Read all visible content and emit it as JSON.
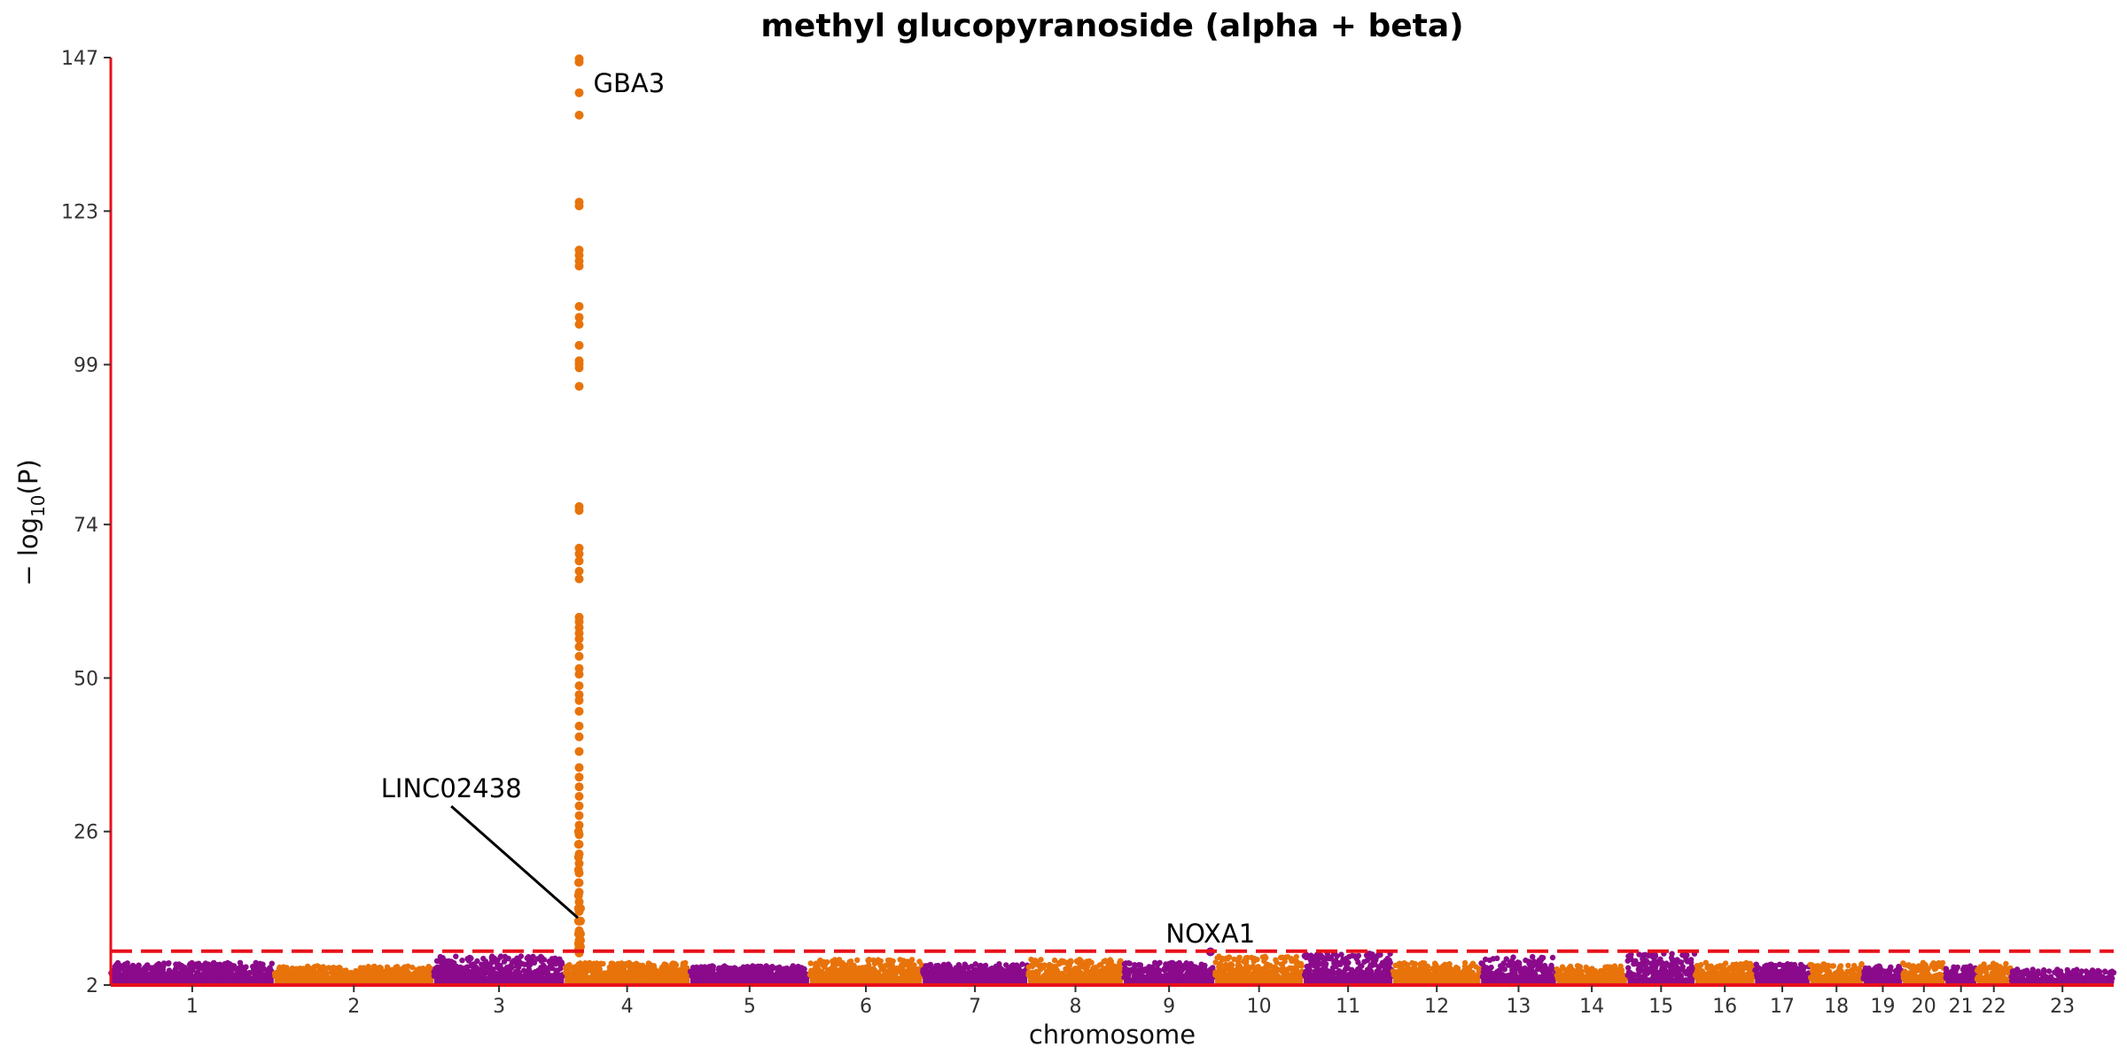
{
  "chart_data": {
    "type": "scatter",
    "title": "methyl glucopyranoside (alpha + beta)",
    "xlabel": "chromosome",
    "ylabel": "− log10(P)",
    "ylabel_main": "− log",
    "ylabel_sub": "10",
    "ylabel_tail": "(P)",
    "y_ticks": [
      "2",
      "26",
      "50",
      "74",
      "99",
      "123",
      "147"
    ],
    "y_tick_values": [
      2,
      26,
      50,
      74,
      99,
      123,
      147
    ],
    "ylim": [
      2,
      147
    ],
    "significance_threshold": 7.3,
    "threshold_color": "#e8101b",
    "axis_color": "#e8101b",
    "colors": {
      "odd_chromosome": "#8b0a8b",
      "even_chromosome": "#e8730a"
    },
    "chromosomes": [
      {
        "label": "1",
        "length": 248,
        "baseline": 4.0,
        "peak": 5.5
      },
      {
        "label": "2",
        "length": 242,
        "baseline": 4.0,
        "peak": 5.0
      },
      {
        "label": "3",
        "length": 198,
        "baseline": 4.0,
        "peak": 6.5
      },
      {
        "label": "4",
        "length": 190,
        "baseline": 4.2,
        "peak": 5.5
      },
      {
        "label": "5",
        "length": 181,
        "baseline": 4.0,
        "peak": 5.0
      },
      {
        "label": "6",
        "length": 171,
        "baseline": 4.0,
        "peak": 6.0
      },
      {
        "label": "7",
        "length": 159,
        "baseline": 4.2,
        "peak": 5.3
      },
      {
        "label": "8",
        "length": 145,
        "baseline": 4.0,
        "peak": 6.0
      },
      {
        "label": "9",
        "length": 138,
        "baseline": 3.8,
        "peak": 5.5
      },
      {
        "label": "10",
        "length": 134,
        "baseline": 4.0,
        "peak": 6.5
      },
      {
        "label": "11",
        "length": 135,
        "baseline": 4.0,
        "peak": 7.0
      },
      {
        "label": "12",
        "length": 133,
        "baseline": 4.0,
        "peak": 5.5
      },
      {
        "label": "13",
        "length": 114,
        "baseline": 3.8,
        "peak": 6.5
      },
      {
        "label": "14",
        "length": 107,
        "baseline": 3.6,
        "peak": 5.0
      },
      {
        "label": "15",
        "length": 102,
        "baseline": 3.8,
        "peak": 7.0
      },
      {
        "label": "16",
        "length": 90,
        "baseline": 3.7,
        "peak": 5.5
      },
      {
        "label": "17",
        "length": 83,
        "baseline": 3.8,
        "peak": 5.3
      },
      {
        "label": "18",
        "length": 80,
        "baseline": 3.6,
        "peak": 5.3
      },
      {
        "label": "19",
        "length": 59,
        "baseline": 3.6,
        "peak": 5.0
      },
      {
        "label": "20",
        "length": 64,
        "baseline": 3.6,
        "peak": 5.5
      },
      {
        "label": "21",
        "length": 47,
        "baseline": 3.5,
        "peak": 5.0
      },
      {
        "label": "22",
        "length": 51,
        "baseline": 3.5,
        "peak": 5.5
      },
      {
        "label": "23",
        "length": 156,
        "baseline": 3.0,
        "peak": 4.5
      }
    ],
    "peak_points": [
      {
        "chromosome": "4",
        "pos_mb": 22,
        "y": [
          146.8,
          146.3,
          141.5,
          138.0,
          124.4,
          123.8,
          116.9,
          116.1,
          115.2,
          114.4,
          108.1,
          106.4,
          105.3,
          102.0,
          99.6,
          99.1,
          98.5,
          95.6,
          76.8,
          76.2,
          70.3,
          69.4,
          68.3,
          66.7,
          65.5,
          59.5,
          58.8,
          57.9,
          57.0,
          56.1,
          54.9,
          53.4,
          51.5,
          50.6,
          48.8,
          47.4,
          46.5,
          44.8,
          42.5,
          40.8,
          38.5,
          36.0,
          34.5,
          33.0,
          31.5,
          30.0,
          28.5,
          27.0,
          25.5,
          24.0,
          22.5,
          21.0,
          19.5,
          18.0,
          16.5,
          15.0,
          13.5,
          12.0,
          10.5,
          9.0,
          8.0,
          7.0
        ]
      },
      {
        "chromosome": "4",
        "pos_mb": 21,
        "y": [
          26.0,
          24.0,
          22.0,
          20.0,
          18.0,
          16.0,
          14.0,
          12.0,
          10.0,
          8.5,
          7.5
        ]
      },
      {
        "chromosome": "4",
        "pos_mb": 24,
        "y": [
          14.0,
          12.0,
          10.0,
          9.0,
          8.0
        ]
      },
      {
        "chromosome": "9",
        "pos_mb": 132,
        "y": [
          7.2
        ]
      },
      {
        "chromosome": "11",
        "pos_mb": 100,
        "y": [
          6.7
        ]
      },
      {
        "chromosome": "15",
        "pos_mb": 40,
        "y": [
          6.6
        ]
      }
    ],
    "annotations": [
      {
        "text": "GBA3",
        "chromosome": "4",
        "pos_mb": 22,
        "y": 143
      },
      {
        "text": "LINC02438",
        "chromosome": "4",
        "pos_mb": 19,
        "y": 33
      },
      {
        "text": "NOXA1",
        "chromosome": "9",
        "pos_mb": 132,
        "y": 10
      }
    ]
  }
}
